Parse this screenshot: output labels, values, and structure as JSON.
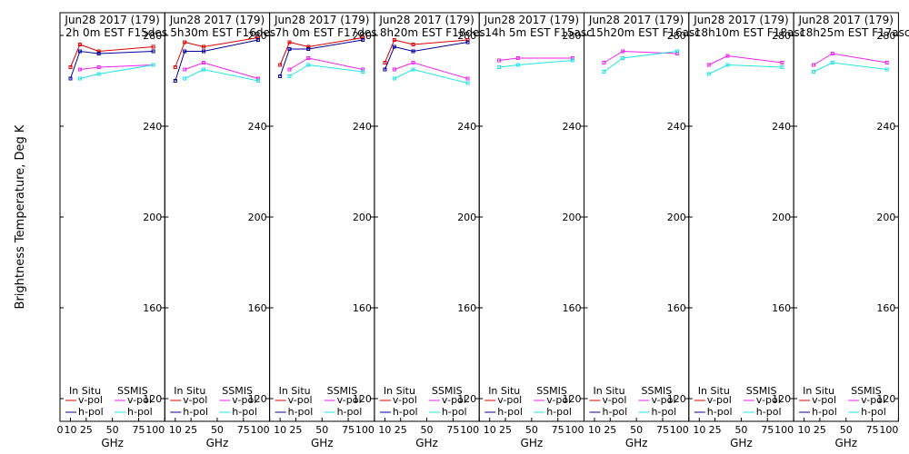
{
  "chart_data": {
    "type": "line",
    "ylabel": "Brightness Temperature, Deg K",
    "xlabel": "GHz",
    "ylim": [
      110,
      290
    ],
    "xlim": [
      0,
      100
    ],
    "yticks": [
      "120",
      "160",
      "200",
      "240",
      "280"
    ],
    "xticks_first": [
      "0",
      "10",
      "25",
      "50",
      "75",
      "100"
    ],
    "xticks": [
      "10",
      "25",
      "50",
      "75",
      "100"
    ],
    "legend": {
      "left_title": "In Situ",
      "right_title": "SSMIS",
      "vpol": "v-pol",
      "hpol": "h-pol"
    },
    "colors": {
      "insitu_v": "#dd0000",
      "insitu_h": "#000099",
      "ssmis_v": "#ee22ee",
      "ssmis_h": "#22e5e5"
    },
    "panels": [
      {
        "title1": "Jun28 2017 (179)",
        "title2": "2h 0m EST F15des",
        "insitu_v": {
          "x": [
            10,
            19,
            37,
            89
          ],
          "y": [
            266,
            276,
            273,
            275
          ]
        },
        "insitu_h": {
          "x": [
            10,
            19,
            37,
            89
          ],
          "y": [
            261,
            273,
            272,
            273
          ]
        },
        "ssmis_v": {
          "x": [
            19,
            37,
            89
          ],
          "y": [
            265,
            266,
            267
          ]
        },
        "ssmis_h": {
          "x": [
            19,
            37,
            89
          ],
          "y": [
            261,
            263,
            267
          ]
        }
      },
      {
        "title1": "Jun28 2017 (179)",
        "title2": "5h30m EST F16des",
        "insitu_v": {
          "x": [
            10,
            19,
            37,
            89
          ],
          "y": [
            266,
            277,
            275,
            279
          ]
        },
        "insitu_h": {
          "x": [
            10,
            19,
            37,
            89
          ],
          "y": [
            260,
            273,
            273,
            278
          ]
        },
        "ssmis_v": {
          "x": [
            19,
            37,
            89
          ],
          "y": [
            265,
            268,
            261
          ]
        },
        "ssmis_h": {
          "x": [
            19,
            37,
            89
          ],
          "y": [
            261,
            265,
            260
          ]
        }
      },
      {
        "title1": "Jun28 2017 (179)",
        "title2": "7h 0m EST F17des",
        "insitu_v": {
          "x": [
            10,
            19,
            37,
            89
          ],
          "y": [
            267,
            277,
            275,
            279
          ]
        },
        "insitu_h": {
          "x": [
            10,
            19,
            37,
            89
          ],
          "y": [
            262,
            274,
            274,
            278
          ]
        },
        "ssmis_v": {
          "x": [
            19,
            37,
            89
          ],
          "y": [
            265,
            270,
            265
          ]
        },
        "ssmis_h": {
          "x": [
            19,
            37,
            89
          ],
          "y": [
            262,
            267,
            264
          ]
        }
      },
      {
        "title1": "Jun28 2017 (179)",
        "title2": "8h20m EST F18des",
        "insitu_v": {
          "x": [
            10,
            19,
            37,
            89
          ],
          "y": [
            268,
            278,
            276,
            278
          ]
        },
        "insitu_h": {
          "x": [
            10,
            19,
            37,
            89
          ],
          "y": [
            265,
            275,
            273,
            277
          ]
        },
        "ssmis_v": {
          "x": [
            19,
            37,
            89
          ],
          "y": [
            265,
            268,
            261
          ]
        },
        "ssmis_h": {
          "x": [
            19,
            37,
            89
          ],
          "y": [
            261,
            265,
            259
          ]
        }
      },
      {
        "title1": "Jun28 2017 (179)",
        "title2": "14h 5m EST F15asc",
        "insitu_v": {
          "x": [],
          "y": []
        },
        "insitu_h": {
          "x": [],
          "y": []
        },
        "ssmis_v": {
          "x": [
            19,
            37,
            89
          ],
          "y": [
            269,
            270,
            270
          ]
        },
        "ssmis_h": {
          "x": [
            19,
            37,
            89
          ],
          "y": [
            266,
            267,
            269
          ]
        }
      },
      {
        "title1": "Jun28 2017 (179)",
        "title2": "15h20m EST F16asc",
        "insitu_v": {
          "x": [],
          "y": []
        },
        "insitu_h": {
          "x": [],
          "y": []
        },
        "ssmis_v": {
          "x": [
            19,
            37,
            89
          ],
          "y": [
            268,
            273,
            272
          ]
        },
        "ssmis_h": {
          "x": [
            19,
            37,
            89
          ],
          "y": [
            264,
            270,
            273
          ]
        }
      },
      {
        "title1": "Jun28 2017 (179)",
        "title2": "18h10m EST F18asc",
        "insitu_v": {
          "x": [],
          "y": []
        },
        "insitu_h": {
          "x": [],
          "y": []
        },
        "ssmis_v": {
          "x": [
            19,
            37,
            89
          ],
          "y": [
            267,
            271,
            268
          ]
        },
        "ssmis_h": {
          "x": [
            19,
            37,
            89
          ],
          "y": [
            263,
            267,
            266
          ]
        }
      },
      {
        "title1": "Jun28 2017 (179)",
        "title2": "18h25m EST F17asc",
        "insitu_v": {
          "x": [],
          "y": []
        },
        "insitu_h": {
          "x": [],
          "y": []
        },
        "ssmis_v": {
          "x": [
            19,
            37,
            89
          ],
          "y": [
            267,
            272,
            268
          ]
        },
        "ssmis_h": {
          "x": [
            19,
            37,
            89
          ],
          "y": [
            264,
            268,
            265
          ]
        }
      }
    ]
  }
}
